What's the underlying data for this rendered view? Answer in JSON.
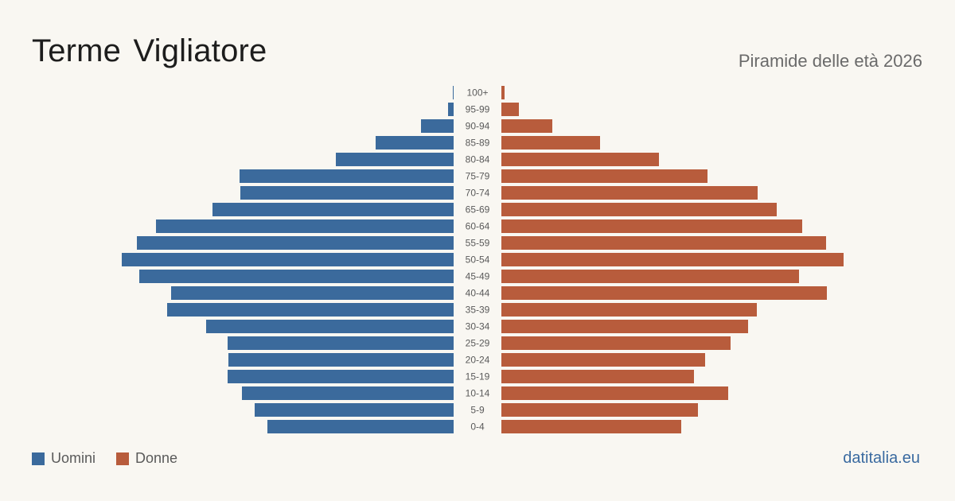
{
  "header": {
    "title": "Terme  Vigliatore",
    "subtitle": "Piramide delle età 2026"
  },
  "legend": {
    "men_label": "Uomini",
    "women_label": "Donne"
  },
  "footer": {
    "brand": "datitalia.eu"
  },
  "colors": {
    "men": "#3b6a9c",
    "women": "#b85c3c",
    "background": "#f9f7f2"
  },
  "chart_data": {
    "type": "bar",
    "orientation": "horizontal-pyramid",
    "categories": [
      "100+",
      "95-99",
      "90-94",
      "85-89",
      "80-84",
      "75-79",
      "70-74",
      "65-69",
      "60-64",
      "55-59",
      "50-54",
      "45-49",
      "40-44",
      "35-39",
      "30-34",
      "25-29",
      "20-24",
      "15-19",
      "10-14",
      "5-9",
      "0-4"
    ],
    "series": [
      {
        "name": "Uomini",
        "values": [
          1,
          7,
          41,
          98,
          148,
          269,
          268,
          303,
          374,
          398,
          417,
          395,
          355,
          360,
          311,
          284,
          283,
          284,
          266,
          250,
          234
        ]
      },
      {
        "name": "Donne",
        "values": [
          4,
          22,
          64,
          124,
          198,
          259,
          322,
          346,
          378,
          408,
          430,
          374,
          409,
          321,
          310,
          288,
          256,
          242,
          285,
          247,
          226
        ]
      }
    ],
    "title": "Terme  Vigliatore",
    "subtitle": "Piramide delle età 2026",
    "xlabel": "",
    "ylabel": "",
    "legend_position": "bottom-left",
    "grid": false
  }
}
